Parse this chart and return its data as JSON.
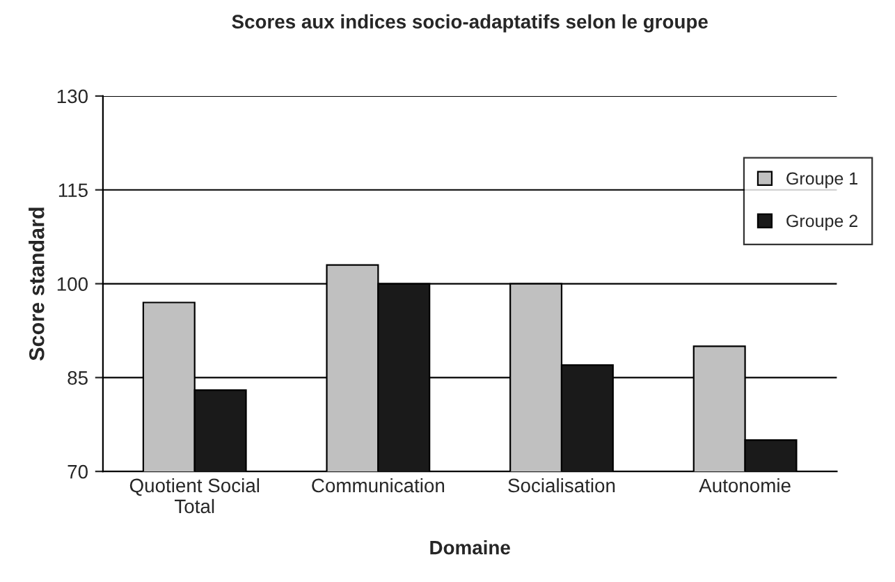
{
  "chart_data": {
    "type": "bar",
    "title": "Scores aux indices socio-adaptatifs selon le groupe",
    "xlabel": "Domaine",
    "ylabel": "Score standard",
    "categories": [
      "Quotient Social\nTotal",
      "Communication",
      "Socialisation",
      "Autonomie"
    ],
    "series": [
      {
        "name": "Groupe 1",
        "color": "#c0c0c0",
        "values": [
          97,
          103,
          100,
          90
        ]
      },
      {
        "name": "Groupe 2",
        "color": "#1a1a1a",
        "values": [
          83,
          100,
          87,
          75
        ]
      }
    ],
    "ylim": [
      70,
      130
    ],
    "yticks": [
      70,
      85,
      100,
      115,
      130
    ],
    "grid": "y",
    "legend": "right"
  }
}
